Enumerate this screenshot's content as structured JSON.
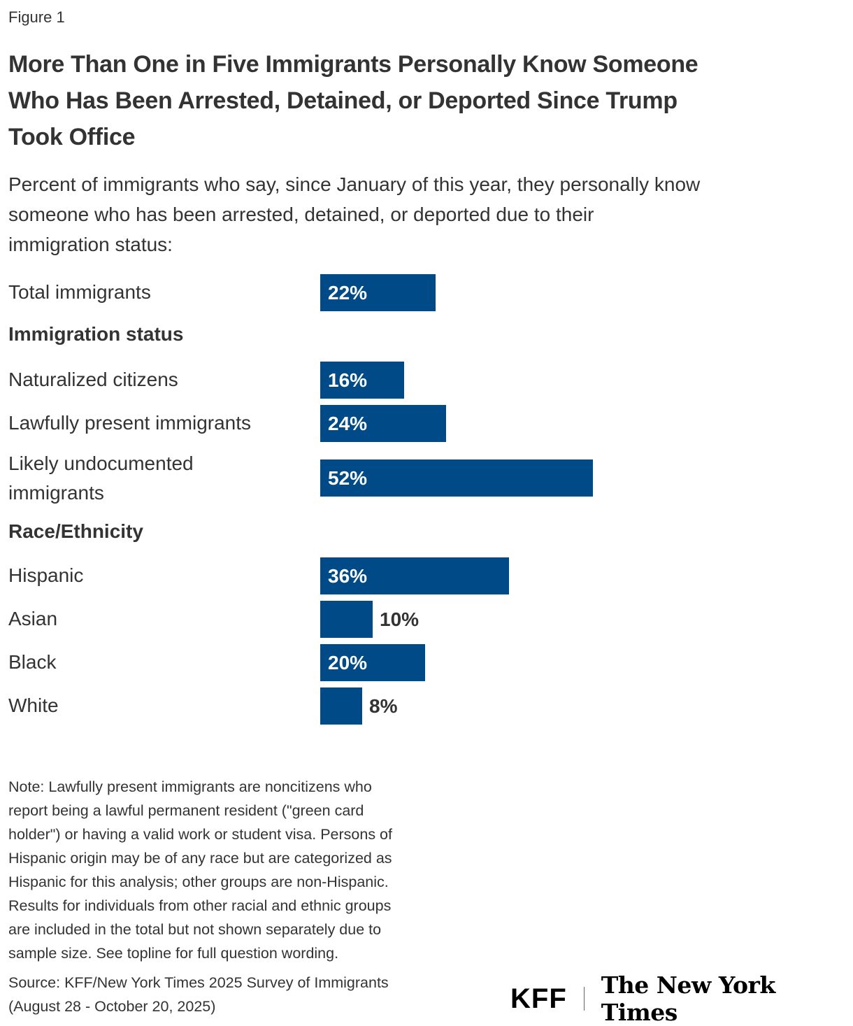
{
  "figure_label": "Figure 1",
  "title_lines": [
    "More Than One in Five Immigrants Personally Know Someone",
    "Who Has Been Arrested, Detained, or Deported Since Trump",
    "Took Office"
  ],
  "subtitle_lines": [
    "Percent of immigrants who say, since January of this year, they personally know",
    "someone who has been arrested, detained, or deported due to their",
    "immigration status:"
  ],
  "chart_data": {
    "type": "bar",
    "orientation": "horizontal",
    "title": "More Than One in Five Immigrants Personally Know Someone Who Has Been Arrested, Detained, or Deported Since Trump Took Office",
    "subtitle": "Percent of immigrants who say, since January of this year, they personally know someone who has been arrested, detained, or deported due to their immigration status:",
    "unit": "%",
    "xlim": [
      0,
      100
    ],
    "grid": false,
    "bar_color": "#004b87",
    "groups": [
      "Immigration status",
      "Race/Ethnicity"
    ],
    "categories": [
      "Total immigrants",
      "Naturalized citizens",
      "Lawfully present immigrants",
      "Likely undocumented immigrants",
      "Hispanic",
      "Asian",
      "Black",
      "White"
    ],
    "category_groups": [
      null,
      "Immigration status",
      "Immigration status",
      "Immigration status",
      "Race/Ethnicity",
      "Race/Ethnicity",
      "Race/Ethnicity",
      "Race/Ethnicity"
    ],
    "values": [
      22,
      16,
      24,
      52,
      36,
      10,
      20,
      8
    ],
    "data_labels": [
      "22%",
      "16%",
      "24%",
      "52%",
      "36%",
      "10%",
      "20%",
      "8%"
    ]
  },
  "note_lines": [
    "Note: Lawfully present immigrants are noncitizens who",
    "report being a lawful permanent resident (\"green card",
    "holder\") or having a valid work or student visa. Persons of",
    "Hispanic origin may be of any race but are categorized as",
    "Hispanic for this analysis; other groups are non-Hispanic.",
    "Results for individuals from other racial and ethnic groups",
    "are included in the total but not shown separately due to",
    "sample size. See topline for full question wording."
  ],
  "source_lines": [
    "Source: KFF/New York Times 2025 Survey of Immigrants",
    "(August 28 - October 20, 2025)"
  ],
  "logos": {
    "kff": "KFF",
    "nyt": "The New York Times"
  },
  "colors": {
    "bar": "#004b87",
    "text": "#333333",
    "label_inside": "#ffffff"
  }
}
